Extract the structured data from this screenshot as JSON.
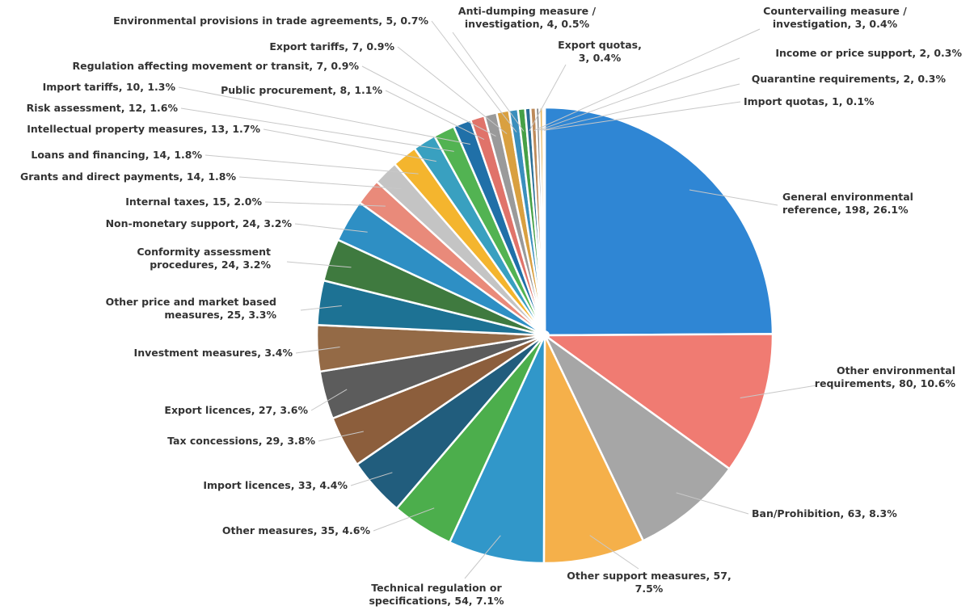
{
  "chart_data": {
    "type": "pie",
    "title": "",
    "start_angle_deg": 0,
    "direction": "clockwise",
    "slices": [
      {
        "label": "General environmental reference, 198, 26.1%",
        "name": "General environmental reference",
        "value": 198,
        "percent": 26.1,
        "color": "#2f86d4"
      },
      {
        "label": "Other environmental requirements, 80, 10.6%",
        "name": "Other environmental requirements",
        "value": 80,
        "percent": 10.6,
        "color": "#f07b72"
      },
      {
        "label": "Ban/Prohibition, 63, 8.3%",
        "name": "Ban/Prohibition",
        "value": 63,
        "percent": 8.3,
        "color": "#a6a6a6"
      },
      {
        "label": "Other support measures, 57, 7.5%",
        "name": "Other support measures",
        "value": 57,
        "percent": 7.5,
        "color": "#f5b04a"
      },
      {
        "label": "Technical regulation or specifications, 54, 7.1%",
        "name": "Technical regulation or specifications",
        "value": 54,
        "percent": 7.1,
        "color": "#3197c9"
      },
      {
        "label": "Other measures, 35, 4.6%",
        "name": "Other measures",
        "value": 35,
        "percent": 4.6,
        "color": "#4cae4c"
      },
      {
        "label": "Import licences, 33, 4.4%",
        "name": "Import licences",
        "value": 33,
        "percent": 4.4,
        "color": "#215d7d"
      },
      {
        "label": "Tax concessions, 29, 3.8%",
        "name": "Tax concessions",
        "value": 29,
        "percent": 3.8,
        "color": "#8c5e3c"
      },
      {
        "label": "Export licences, 27, 3.6%",
        "name": "Export licences",
        "value": 27,
        "percent": 3.6,
        "color": "#5c5c5c"
      },
      {
        "label": "Investment measures, 3.4%",
        "name": "Investment measures",
        "value": 26,
        "percent": 3.4,
        "color": "#946a46"
      },
      {
        "label": "Other price and market based measures, 25, 3.3%",
        "name": "Other price and market based measures",
        "value": 25,
        "percent": 3.3,
        "color": "#1d7294"
      },
      {
        "label": "Conformity assessment procedures, 24, 3.2%",
        "name": "Conformity assessment procedures",
        "value": 24,
        "percent": 3.2,
        "color": "#3f7a3f"
      },
      {
        "label": "Non-monetary support, 24, 3.2%",
        "name": "Non-monetary support",
        "value": 24,
        "percent": 3.2,
        "color": "#2e8fc4"
      },
      {
        "label": "Internal taxes, 15, 2.0%",
        "name": "Internal taxes",
        "value": 15,
        "percent": 2.0,
        "color": "#e98a7a"
      },
      {
        "label": "Grants and direct payments, 14, 1.8%",
        "name": "Grants and direct payments",
        "value": 14,
        "percent": 1.8,
        "color": "#c4c4c4"
      },
      {
        "label": "Loans and financing, 14, 1.8%",
        "name": "Loans and financing",
        "value": 14,
        "percent": 1.8,
        "color": "#f4b52e"
      },
      {
        "label": "Intellectual property measures, 13, 1.7%",
        "name": "Intellectual property measures",
        "value": 13,
        "percent": 1.7,
        "color": "#39a0c0"
      },
      {
        "label": "Risk assessment, 12, 1.6%",
        "name": "Risk assessment",
        "value": 12,
        "percent": 1.6,
        "color": "#52b352"
      },
      {
        "label": "Import tariffs, 10, 1.3%",
        "name": "Import tariffs",
        "value": 10,
        "percent": 1.3,
        "color": "#2070a8"
      },
      {
        "label": "Public procurement, 8, 1.1%",
        "name": "Public procurement",
        "value": 8,
        "percent": 1.1,
        "color": "#e0736a"
      },
      {
        "label": "Regulation affecting movement or transit, 7, 0.9%",
        "name": "Regulation affecting movement or transit",
        "value": 7,
        "percent": 0.9,
        "color": "#9a9a9a"
      },
      {
        "label": "Export tariffs, 7, 0.9%",
        "name": "Export tariffs",
        "value": 7,
        "percent": 0.9,
        "color": "#d9a040"
      },
      {
        "label": "Environmental provisions in trade agreements, 5, 0.7%",
        "name": "Environmental provisions in trade agreements",
        "value": 5,
        "percent": 0.7,
        "color": "#3a8fbd"
      },
      {
        "label": "Anti-dumping measure / investigation, 4, 0.5%",
        "name": "Anti-dumping measure / investigation",
        "value": 4,
        "percent": 0.5,
        "color": "#46a046"
      },
      {
        "label": "Export quotas, 3, 0.4%",
        "name": "Export quotas",
        "value": 3,
        "percent": 0.4,
        "color": "#2a6e96"
      },
      {
        "label": "Countervailing measure / investigation, 3, 0.4%",
        "name": "Countervailing measure / investigation",
        "value": 3,
        "percent": 0.4,
        "color": "#bd8a5a"
      },
      {
        "label": "Income or price support, 2, 0.3%",
        "name": "Income or price support",
        "value": 2,
        "percent": 0.3,
        "color": "#8a8a8a"
      },
      {
        "label": "Quarantine requirements, 2, 0.3%",
        "name": "Quarantine requirements",
        "value": 2,
        "percent": 0.3,
        "color": "#e8b860"
      },
      {
        "label": "Import quotas, 1, 0.1%",
        "name": "Import quotas",
        "value": 1,
        "percent": 0.1,
        "color": "#f0dcb0"
      }
    ]
  }
}
